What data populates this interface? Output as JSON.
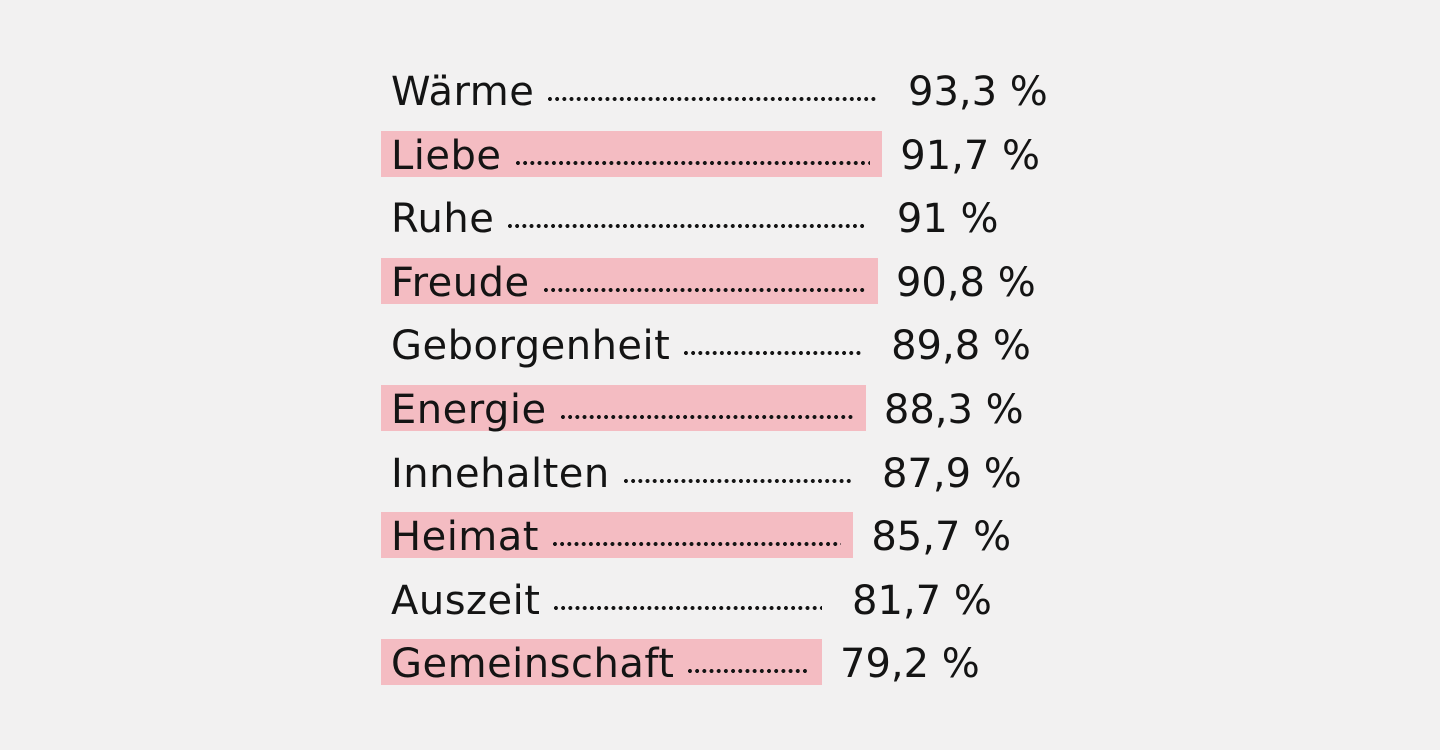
{
  "chart_data": {
    "type": "bar",
    "categories": [
      "Wärme",
      "Liebe",
      "Ruhe",
      "Freude",
      "Geborgenheit",
      "Energie",
      "Innehalten",
      "Heimat",
      "Auszeit",
      "Gemeinschaft"
    ],
    "values": [
      93.3,
      91.7,
      91,
      90.8,
      89.8,
      88.3,
      87.9,
      85.7,
      81.7,
      79.2
    ],
    "value_labels": [
      "93,3 %",
      "91,7 %",
      "91 %",
      "90,8 %",
      "89,8 %",
      "88,3 %",
      "87,9 %",
      "85,7 %",
      "81,7 %",
      "79,2 %"
    ],
    "highlighted": [
      false,
      true,
      false,
      true,
      false,
      true,
      false,
      true,
      false,
      true
    ],
    "unit": "%",
    "title": "",
    "xlabel": "",
    "ylabel": ""
  },
  "colors": {
    "background": "#f2f1f1",
    "highlight": "#f4bcc2",
    "text": "#141414"
  }
}
